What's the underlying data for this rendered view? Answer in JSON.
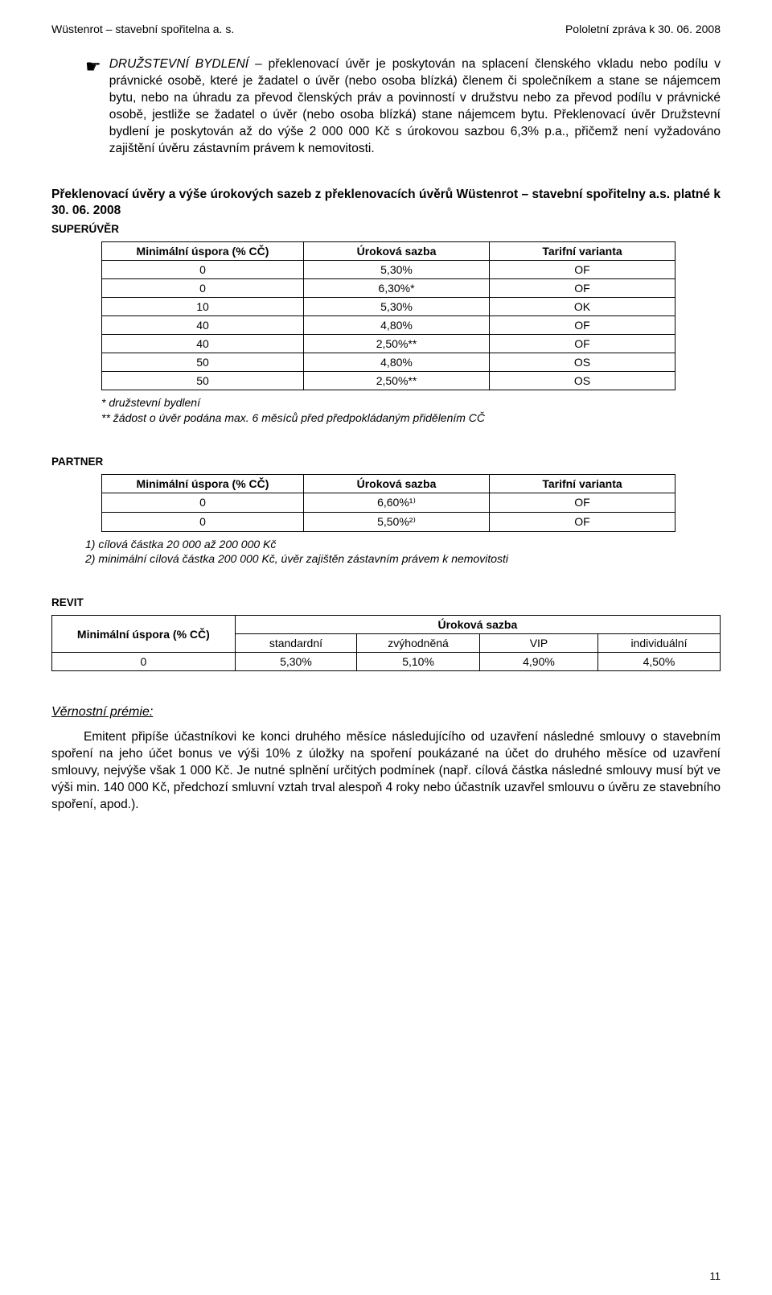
{
  "header": {
    "left": "Wüstenrot – stavební spořitelna a. s.",
    "right": "Pololetní zpráva k 30. 06. 2008"
  },
  "bullet": {
    "lead_italic": "DRUŽSTEVNÍ BYDLENÍ",
    "rest_first_sentence": "– překlenovací úvěr je poskytován na splacení členského vkladu nebo podílu v právnické osobě, které je žadatel o úvěr (nebo osoba blízká) členem či společníkem a stane se nájemcem bytu, nebo na úhradu za převod členských práv a povinností v družstvu nebo za převod podílu v právnické osobě, jestliže se žadatel o úvěr (nebo osoba blízká) stane nájemcem bytu. Překlenovací úvěr Družstevní bydlení je poskytován až do výše 2 000 000 Kč s úrokovou sazbou 6,3% p.a., přičemž není vyžadováno zajištění úvěru zástavním právem k nemovitosti."
  },
  "section_heading": "Překlenovací úvěry a výše úrokových sazeb z překlenovacích úvěrů Wüstenrot – stavební spořitelny a.s. platné  k 30. 06. 2008",
  "super": {
    "label": "SUPERÚVĚR",
    "cols": [
      "Minimální úspora (% CČ)",
      "Úroková sazba",
      "Tarifní varianta"
    ],
    "rows": [
      [
        "0",
        "5,30%",
        "OF"
      ],
      [
        "0",
        "6,30%*",
        "OF"
      ],
      [
        "10",
        "5,30%",
        "OK"
      ],
      [
        "40",
        "4,80%",
        "OF"
      ],
      [
        "40",
        "2,50%**",
        "OF"
      ],
      [
        "50",
        "4,80%",
        "OS"
      ],
      [
        "50",
        "2,50%**",
        "OS"
      ]
    ],
    "foot1": "  * družstevní bydlení",
    "foot2": "** žádost o úvěr podána max. 6 měsíců před předpokládaným přidělením CČ"
  },
  "partner": {
    "label": "PARTNER",
    "cols": [
      "Minimální úspora (% CČ)",
      "Úroková sazba",
      "Tarifní varianta"
    ],
    "rows": [
      [
        "0",
        "6,60%¹⁾",
        "OF"
      ],
      [
        "0",
        "5,50%²⁾",
        "OF"
      ]
    ],
    "foot1": "1)  cílová částka 20 000 až 200 000 Kč",
    "foot2": "2)  minimální cílová částka  200 000 Kč, úvěr zajištěn zástavním právem k nemovitosti"
  },
  "revit": {
    "label": "REVIT",
    "col_min": "Minimální úspora (% CČ)",
    "col_rate": "Úroková sazba",
    "subcols": [
      "standardní",
      "zvýhodněná",
      "VIP",
      "individuální"
    ],
    "row": [
      "0",
      "5,30%",
      "5,10%",
      "4,90%",
      "4,50%"
    ]
  },
  "vernost": {
    "title": "Věrnostní prémie:",
    "para": "Emitent připíše účastníkovi ke konci druhého měsíce následujícího od uzavření následné smlouvy o stavebním spoření na jeho účet bonus ve výši 10% z úložky na spoření poukázané na účet do druhého měsíce od uzavření smlouvy, nejvýše však 1 000 Kč. Je nutné splnění určitých podmínek (např. cílová částka následné smlouvy musí být ve výši min. 140 000 Kč, předchozí smluvní vztah trval alespoň 4 roky  nebo účastník uzavřel smlouvu o úvěru ze stavebního spoření, apod.)."
  },
  "page_number": "11",
  "widths": {
    "super_col1": 230,
    "super_col2": 210,
    "super_col3": 210,
    "revit_col_min": 240,
    "revit_sub": 148
  }
}
